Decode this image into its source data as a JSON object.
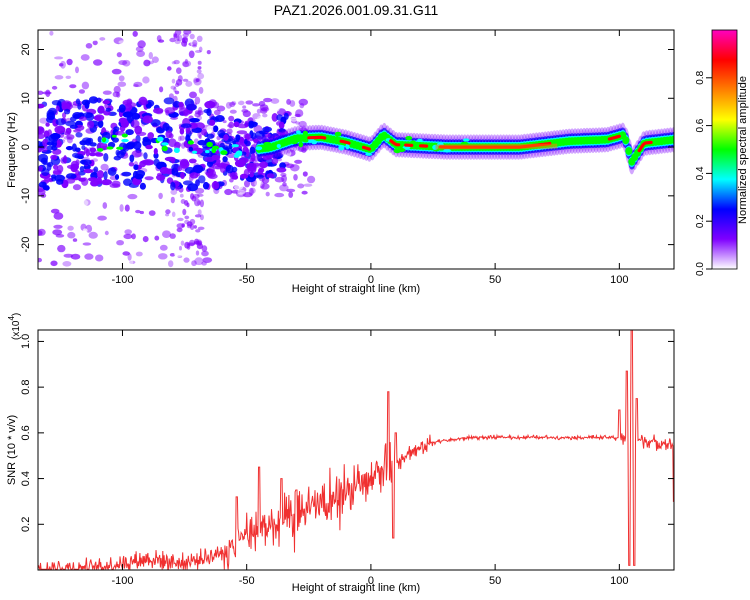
{
  "title": "PAZ1.2026.001.09.31.G11",
  "chart_data": [
    {
      "type": "heatmap",
      "name": "spectrogram",
      "xlabel": "Height of straight line (km)",
      "ylabel": "Frequency (Hz)",
      "xlim": [
        -134,
        122
      ],
      "ylim": [
        -25,
        24
      ],
      "xticks": [
        -100,
        -50,
        0,
        50,
        100
      ],
      "yticks": [
        -20,
        -10,
        0,
        10,
        20
      ],
      "xtick_labels": [
        "-100",
        "-50",
        "0",
        "50",
        "100"
      ],
      "ytick_labels": [
        "-20",
        "-10",
        "0",
        "10",
        "20"
      ],
      "colorbar": {
        "label": "Normalized spectral amplitude",
        "range": [
          0,
          1
        ],
        "ticks": [
          0.0,
          0.2,
          0.4,
          0.6,
          0.8
        ],
        "tick_labels": [
          "0.0",
          "0.2",
          "0.4",
          "0.6",
          "0.8"
        ],
        "colormap": [
          "#ffffff",
          "#7f00ff",
          "#0000ff",
          "#00ffff",
          "#00ff00",
          "#ffff00",
          "#ff7f00",
          "#ff0000",
          "#ff00bf"
        ]
      },
      "ridge_frequency_hz": [
        {
          "x": -134,
          "y": 0.5
        },
        {
          "x": -100,
          "y": 1.0
        },
        {
          "x": -70,
          "y": 0.2
        },
        {
          "x": -50,
          "y": -0.8
        },
        {
          "x": -40,
          "y": 0.0
        },
        {
          "x": -30,
          "y": 1.8
        },
        {
          "x": -20,
          "y": 2.0
        },
        {
          "x": -10,
          "y": 1.0
        },
        {
          "x": 0,
          "y": -0.5
        },
        {
          "x": 5,
          "y": 2.5
        },
        {
          "x": 10,
          "y": 0.5
        },
        {
          "x": 30,
          "y": 0.0
        },
        {
          "x": 60,
          "y": 0.0
        },
        {
          "x": 80,
          "y": 1.2
        },
        {
          "x": 95,
          "y": 1.5
        },
        {
          "x": 102,
          "y": 2.5
        },
        {
          "x": 105,
          "y": -3.0
        },
        {
          "x": 110,
          "y": 0.8
        },
        {
          "x": 122,
          "y": 1.5
        }
      ]
    },
    {
      "type": "line",
      "name": "snr",
      "xlabel": "Height of straight line (km)",
      "ylabel": "SNR (10 * v/v)",
      "y_multiplier_label": "(x10",
      "y_multiplier_exp": "4",
      "y_multiplier_close": ")",
      "xlim": [
        -134,
        122
      ],
      "ylim": [
        0,
        1.05
      ],
      "xticks": [
        -100,
        -50,
        0,
        50,
        100
      ],
      "yticks": [
        0.2,
        0.4,
        0.6,
        0.8,
        1.0
      ],
      "xtick_labels": [
        "-100",
        "-50",
        "0",
        "50",
        "100"
      ],
      "ytick_labels": [
        "0.2",
        "0.4",
        "0.6",
        "0.8",
        "1.0"
      ],
      "color": "#f03030",
      "trend": [
        {
          "x": -134,
          "y": 0.005
        },
        {
          "x": -110,
          "y": 0.01
        },
        {
          "x": -90,
          "y": 0.05
        },
        {
          "x": -75,
          "y": 0.03
        },
        {
          "x": -62,
          "y": 0.07
        },
        {
          "x": -50,
          "y": 0.15
        },
        {
          "x": -40,
          "y": 0.19
        },
        {
          "x": -25,
          "y": 0.26
        },
        {
          "x": -10,
          "y": 0.33
        },
        {
          "x": 0,
          "y": 0.41
        },
        {
          "x": 8,
          "y": 0.46
        },
        {
          "x": 15,
          "y": 0.51
        },
        {
          "x": 25,
          "y": 0.56
        },
        {
          "x": 40,
          "y": 0.58
        },
        {
          "x": 80,
          "y": 0.58
        },
        {
          "x": 100,
          "y": 0.58
        },
        {
          "x": 122,
          "y": 0.55
        }
      ],
      "spikes": [
        {
          "x": -54,
          "y": 0.32
        },
        {
          "x": -45,
          "y": 0.45
        },
        {
          "x": -36,
          "y": 0.4
        },
        {
          "x": -30,
          "y": 0.35
        },
        {
          "x": 7,
          "y": 0.78
        },
        {
          "x": 9,
          "y": 0.14
        },
        {
          "x": 10,
          "y": 0.6
        },
        {
          "x": 100,
          "y": 0.7
        },
        {
          "x": 103,
          "y": 0.87
        },
        {
          "x": 104,
          "y": 0.02
        },
        {
          "x": 105,
          "y": 1.05
        },
        {
          "x": 106,
          "y": 0.02
        },
        {
          "x": 107,
          "y": 0.75
        },
        {
          "x": 122,
          "y": 0.3
        }
      ]
    }
  ]
}
